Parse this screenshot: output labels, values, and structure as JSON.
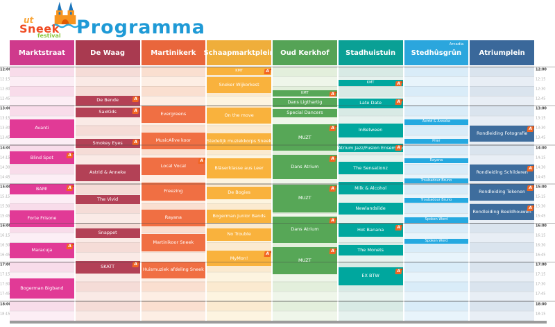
{
  "page": {
    "title": "Programma"
  },
  "logo": {
    "word1": "ut",
    "word2": "Sneek",
    "word3": "festival"
  },
  "flag_icon": {
    "glyph": "A",
    "color": "#f26522"
  },
  "time_axis": {
    "labels": [
      "12:00",
      "12:15",
      "12:30",
      "12:45",
      "13:00",
      "13:15",
      "13:30",
      "13:45",
      "14:00",
      "14:15",
      "14:30",
      "14:45",
      "15:00",
      "15:15",
      "15:30",
      "15:45",
      "16:00",
      "16:15",
      "16:30",
      "16:45",
      "17:00",
      "17:15",
      "17:30",
      "17:45",
      "18:00",
      "18:15"
    ],
    "start": "12:00",
    "end": "18:30"
  },
  "venues": [
    {
      "name": "Marktstraat",
      "badge": "",
      "colors": {
        "header": "#cf3a8c",
        "event": "#e13a96",
        "tintA": "#fceef5",
        "tintB": "#f8dcea"
      },
      "events": [
        {
          "title": "Avanti",
          "start": "13:20",
          "end": "13:50",
          "flag": false
        },
        {
          "title": "Blind Spot",
          "start": "14:10",
          "end": "14:30",
          "flag": true
        },
        {
          "title": "BAM!",
          "start": "15:00",
          "end": "15:17",
          "flag": true
        },
        {
          "title": "Forte Frisone",
          "start": "15:40",
          "end": "16:07",
          "flag": false
        },
        {
          "title": "Maracuja",
          "start": "16:30",
          "end": "16:55",
          "flag": true
        },
        {
          "title": "Bogerman Bigband",
          "start": "17:25",
          "end": "17:57",
          "flag": false
        }
      ]
    },
    {
      "name": "De Waag",
      "badge": "",
      "colors": {
        "header": "#a93a50",
        "event": "#b34156",
        "tintA": "#faeae6",
        "tintB": "#f5dcd7"
      },
      "events": [
        {
          "title": "De Bende",
          "start": "12:44",
          "end": "13:00",
          "flag": true
        },
        {
          "title": "SaxKids",
          "start": "13:02",
          "end": "13:18",
          "flag": true
        },
        {
          "title": "Smokey Eyes",
          "start": "13:50",
          "end": "14:05",
          "flag": true
        },
        {
          "title": "Astrid & Anneke",
          "start": "14:30",
          "end": "14:56",
          "flag": false
        },
        {
          "title": "The Vivid",
          "start": "15:17",
          "end": "15:32",
          "flag": false
        },
        {
          "title": "Snappet",
          "start": "16:08",
          "end": "16:24",
          "flag": false
        },
        {
          "title": "SKATT",
          "start": "16:58",
          "end": "17:18",
          "flag": true
        }
      ]
    },
    {
      "name": "Martinikerk",
      "badge": "",
      "colors": {
        "header": "#e9663c",
        "event": "#f06f43",
        "tintA": "#fdeee4",
        "tintB": "#fadfd0"
      },
      "events": [
        {
          "title": "Evergreens",
          "start": "13:00",
          "end": "13:27",
          "flag": false
        },
        {
          "title": "MusicAlive koor",
          "start": "13:41",
          "end": "14:07",
          "flag": false
        },
        {
          "title": "Local Vocal",
          "start": "14:19",
          "end": "14:47",
          "flag": true
        },
        {
          "title": "Freezing",
          "start": "14:58",
          "end": "15:26",
          "flag": false
        },
        {
          "title": "Rayana",
          "start": "15:39",
          "end": "16:06",
          "flag": false
        },
        {
          "title": "Martinikoor Sneek",
          "start": "16:16",
          "end": "16:44",
          "flag": false
        },
        {
          "title": "Huismuziek afdeling Sneek",
          "start": "16:59",
          "end": "17:26",
          "flag": false
        }
      ]
    },
    {
      "name": "Schaapmarktplein",
      "badge": "",
      "colors": {
        "header": "#efae3b",
        "event": "#f9b23d",
        "tintA": "#fdf4e0",
        "tintB": "#fbead0"
      },
      "events": [
        {
          "title": "KMT",
          "start": "12:01",
          "end": "12:13",
          "flag": true
        },
        {
          "title": "Sneker Wijkorkest",
          "start": "12:15",
          "end": "12:41",
          "flag": false
        },
        {
          "title": "On the move",
          "start": "13:02",
          "end": "13:28",
          "flag": false
        },
        {
          "title": "Stedelijk muziekkorps Sneek",
          "start": "13:42",
          "end": "14:08",
          "flag": false
        },
        {
          "title": "Bläserklasse aus Leer",
          "start": "14:20",
          "end": "14:52",
          "flag": false
        },
        {
          "title": "De Bogies",
          "start": "15:04",
          "end": "15:24",
          "flag": false
        },
        {
          "title": "Bogerman Junior Bands",
          "start": "15:39",
          "end": "16:00",
          "flag": false
        },
        {
          "title": "No Trouble",
          "start": "16:08",
          "end": "16:28",
          "flag": false
        },
        {
          "title": "MyMon!",
          "start": "16:42",
          "end": "17:07",
          "flag": true
        }
      ]
    },
    {
      "name": "Oud Kerkhof",
      "badge": "",
      "colors": {
        "header": "#55a356",
        "event": "#57a757",
        "tintA": "#eff6ea",
        "tintB": "#e3efdc"
      },
      "events": [
        {
          "title": "KMT",
          "start": "12:36",
          "end": "12:46",
          "flag": true
        },
        {
          "title": "Dans Ligthartig",
          "start": "12:47",
          "end": "13:02",
          "flag": false
        },
        {
          "title": "Special Dancers",
          "start": "13:04",
          "end": "13:18",
          "flag": false
        },
        {
          "title": "MUZT",
          "start": "13:28",
          "end": "14:10",
          "flag": true
        },
        {
          "title": "Dans Atrium",
          "start": "14:15",
          "end": "14:53",
          "flag": true
        },
        {
          "title": "MUZT",
          "start": "15:01",
          "end": "15:44",
          "flag": true
        },
        {
          "title": "Dans Atrium",
          "start": "15:50",
          "end": "16:31",
          "flag": true
        },
        {
          "title": "MUZT",
          "start": "16:37",
          "end": "17:19",
          "flag": true
        }
      ]
    },
    {
      "name": "Stadhuistuin",
      "badge": "",
      "colors": {
        "header": "#0aa095",
        "event": "#00a79e",
        "tintA": "#e6f2ee",
        "tintB": "#d8eae5"
      },
      "events": [
        {
          "title": "KMT",
          "start": "12:20",
          "end": "12:30",
          "flag": true
        },
        {
          "title": "Late Date",
          "start": "12:48",
          "end": "13:05",
          "flag": true
        },
        {
          "title": "InBetween",
          "start": "13:27",
          "end": "13:49",
          "flag": false
        },
        {
          "title": "Atrium Jazz/Fusion Ensemble",
          "start": "13:58",
          "end": "14:12",
          "flag": true
        },
        {
          "title": "The Sensationz",
          "start": "14:26",
          "end": "14:46",
          "flag": false
        },
        {
          "title": "Milk & Alcohol",
          "start": "14:57",
          "end": "15:17",
          "flag": false
        },
        {
          "title": "Newlandslide",
          "start": "15:28",
          "end": "15:48",
          "flag": false
        },
        {
          "title": "Hot Banana",
          "start": "16:01",
          "end": "16:22",
          "flag": true
        },
        {
          "title": "The Monets",
          "start": "16:34",
          "end": "16:51",
          "flag": false
        },
        {
          "title": "EX BTW",
          "start": "17:08",
          "end": "17:36",
          "flag": true
        }
      ]
    },
    {
      "name": "Stedhûsgrûn",
      "badge": "Arcadia",
      "colors": {
        "header": "#2ba6dd",
        "event": "#25a9e0",
        "tintA": "#e8f4fb",
        "tintB": "#d9ecf8"
      },
      "events": [
        {
          "title": "Astrid & Anneke",
          "start": "13:21",
          "end": "13:30",
          "flag": false
        },
        {
          "title": "Piter",
          "start": "13:50",
          "end": "13:59",
          "flag": false
        },
        {
          "title": "Rayana",
          "start": "14:20",
          "end": "14:29",
          "flag": false
        },
        {
          "title": "Troubadour Bruno",
          "start": "14:51",
          "end": "15:00",
          "flag": false
        },
        {
          "title": "Troubadour Bruno",
          "start": "15:21",
          "end": "15:30",
          "flag": false
        },
        {
          "title": "Spoken Word",
          "start": "15:51",
          "end": "16:00",
          "flag": false
        },
        {
          "title": "Spoken Word",
          "start": "16:24",
          "end": "16:33",
          "flag": false
        }
      ]
    },
    {
      "name": "Atriumplein",
      "badge": "",
      "colors": {
        "header": "#3a689a",
        "event": "#3e6d9d",
        "tintA": "#e8eef5",
        "tintB": "#dae4ee"
      },
      "events": [
        {
          "title": "Rondleiding Fotografie",
          "start": "13:30",
          "end": "13:56",
          "flag": true
        },
        {
          "title": "Rondleiding Schilderen",
          "start": "14:30",
          "end": "14:56",
          "flag": true
        },
        {
          "title": "Rondleiding Tekenen",
          "start": "15:00",
          "end": "15:26",
          "flag": true
        },
        {
          "title": "Rondleiding Beeldhouwen",
          "start": "15:31",
          "end": "15:56",
          "flag": true
        }
      ]
    }
  ]
}
